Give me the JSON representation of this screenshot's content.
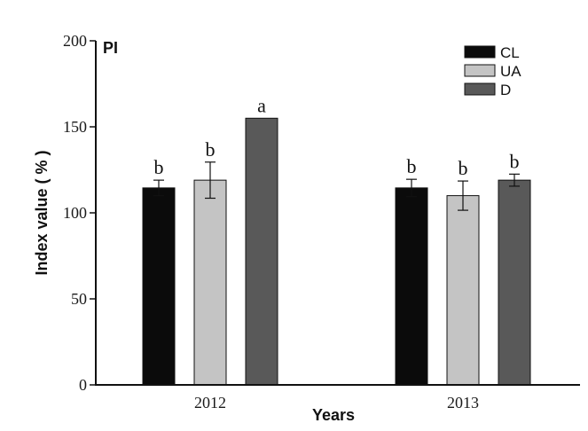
{
  "chart_data": {
    "type": "bar",
    "panel_label": "PI",
    "ylabel": "Index value ( % )",
    "xlabel": "Years",
    "ylim": [
      0,
      200
    ],
    "yticks": [
      0,
      50,
      100,
      150,
      200
    ],
    "categories": [
      "2012",
      "2013"
    ],
    "legend_position": "top-right",
    "series": [
      {
        "name": "CL",
        "color": "#0b0b0b",
        "values": [
          114.5,
          114.5
        ],
        "errors": [
          4.5,
          5
        ],
        "letters": [
          "b",
          "b"
        ]
      },
      {
        "name": "UA",
        "color": "#c4c4c4",
        "values": [
          119,
          110
        ],
        "errors": [
          10.5,
          8.5
        ],
        "letters": [
          "b",
          "b"
        ]
      },
      {
        "name": "D",
        "color": "#595959",
        "values": [
          155,
          119
        ],
        "errors": [
          0,
          3.5
        ],
        "letters": [
          "a",
          "b"
        ]
      }
    ]
  }
}
